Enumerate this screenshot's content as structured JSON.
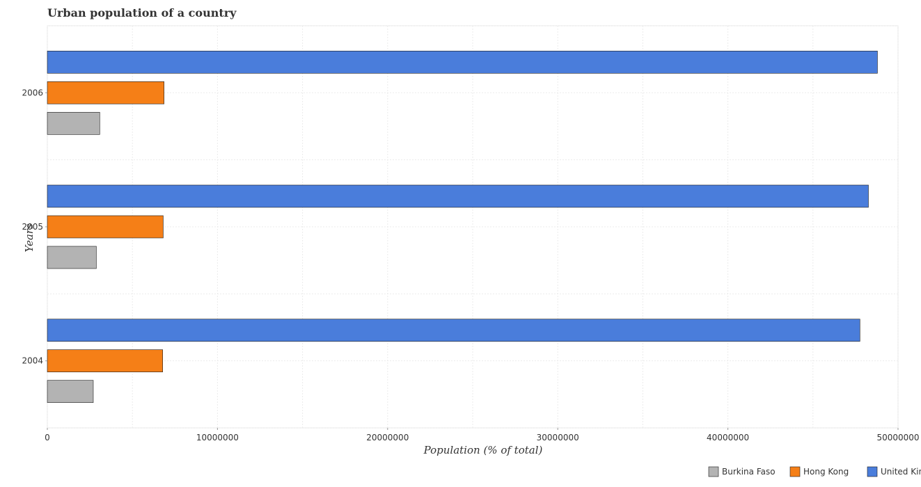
{
  "chart_data": {
    "type": "bar",
    "orientation": "horizontal",
    "title": "Urban population of a country",
    "xlabel": "Population (% of total)",
    "ylabel": "Years",
    "categories": [
      "2004",
      "2005",
      "2006"
    ],
    "xlim": [
      0,
      50000000
    ],
    "xticks": [
      0,
      10000000,
      20000000,
      30000000,
      40000000,
      50000000
    ],
    "xtick_labels": [
      "0",
      "10000000",
      "20000000",
      "30000000",
      "40000000",
      "50000000"
    ],
    "grid": true,
    "legend_position": "bottom-right",
    "series": [
      {
        "name": "Burkina Faso",
        "color": "#b3b3b3",
        "values": [
          2700000,
          2880000,
          3080000
        ]
      },
      {
        "name": "Hong Kong",
        "color": "#f57f17",
        "values": [
          6780000,
          6810000,
          6860000
        ]
      },
      {
        "name": "United Kingdom",
        "color": "#4a7ddb",
        "values": [
          47760000,
          48260000,
          48790000
        ]
      }
    ]
  }
}
